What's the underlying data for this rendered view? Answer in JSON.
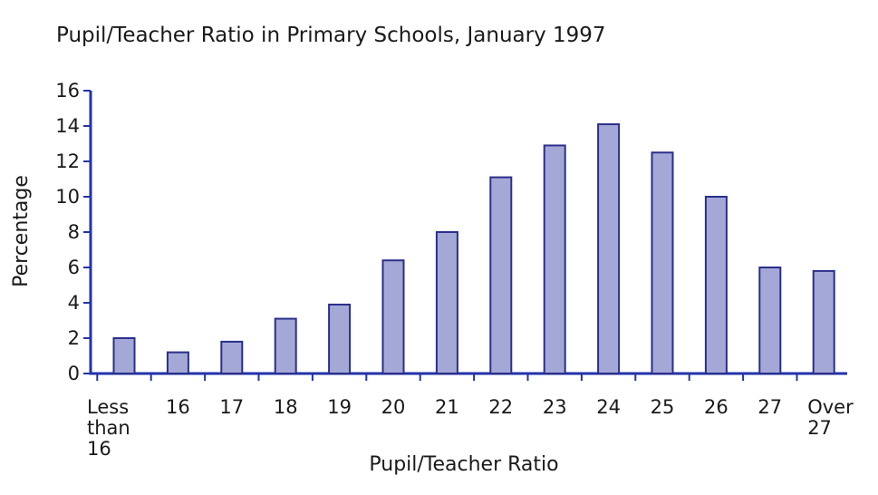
{
  "chart_data": {
    "type": "bar",
    "title": "Pupil/Teacher Ratio in Primary Schools, January 1997",
    "xlabel": "Pupil/Teacher Ratio",
    "ylabel": "Percentage",
    "categories": [
      [
        "Less",
        "than",
        "16"
      ],
      [
        "16"
      ],
      [
        "17"
      ],
      [
        "18"
      ],
      [
        "19"
      ],
      [
        "20"
      ],
      [
        "21"
      ],
      [
        "22"
      ],
      [
        "23"
      ],
      [
        "24"
      ],
      [
        "25"
      ],
      [
        "26"
      ],
      [
        "27"
      ],
      [
        "Over",
        "27"
      ]
    ],
    "values": [
      2.0,
      1.2,
      1.8,
      3.1,
      3.9,
      6.4,
      8.0,
      11.1,
      12.9,
      14.1,
      12.5,
      10.0,
      6.0,
      5.8
    ],
    "ylim": [
      0,
      16
    ],
    "yticks": [
      0,
      2,
      4,
      6,
      8,
      10,
      12,
      14,
      16
    ],
    "grid": false,
    "legend": "none",
    "colors": {
      "bar_fill": "#a4a8d6",
      "bar_stroke": "#2a2f8a",
      "axis": "#2233aa",
      "text": "#1a1a1a"
    }
  }
}
